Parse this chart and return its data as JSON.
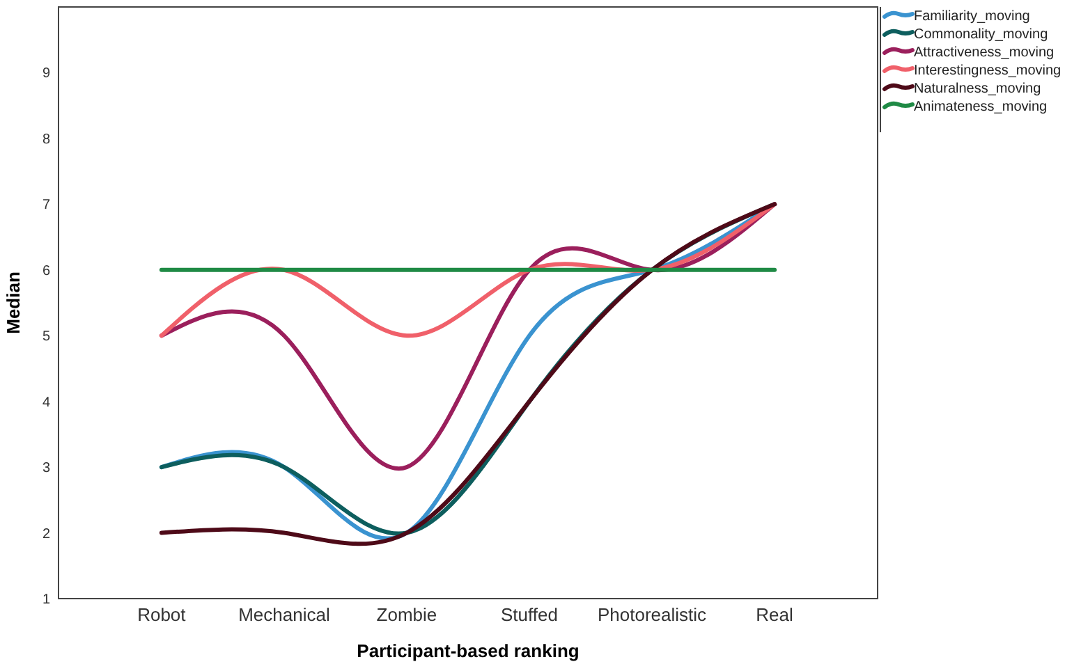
{
  "chart_data": {
    "type": "line",
    "xlabel": "Participant-based ranking",
    "ylabel": "Median",
    "categories": [
      "Robot",
      "Mechanical",
      "Zombie",
      "Stuffed",
      "Photorealistic",
      "Real"
    ],
    "series": [
      {
        "name": "Familiarity_moving",
        "color": "#3a93d0",
        "values": [
          3,
          3,
          2,
          5,
          6,
          7
        ]
      },
      {
        "name": "Commonality_moving",
        "color": "#0d5e5e",
        "values": [
          3,
          3,
          2,
          4,
          6,
          7
        ]
      },
      {
        "name": "Attractiveness_moving",
        "color": "#9b1f5c",
        "values": [
          5,
          5,
          3,
          6,
          6,
          7
        ]
      },
      {
        "name": "Interestingness_moving",
        "color": "#f0606a",
        "values": [
          5,
          6,
          5,
          6,
          6,
          7
        ]
      },
      {
        "name": "Naturalness_moving",
        "color": "#4e0a18",
        "values": [
          2,
          2,
          2,
          4,
          6,
          7
        ]
      },
      {
        "name": "Animateness_moving",
        "color": "#1f8a45",
        "values": [
          6,
          6,
          6,
          6,
          6,
          6
        ]
      }
    ],
    "ylim": [
      1,
      10
    ],
    "yticks": [
      1,
      2,
      3,
      4,
      5,
      6,
      7,
      8,
      9
    ],
    "grid": false,
    "legend": "top right",
    "marker": "none",
    "line_style": "solid"
  }
}
